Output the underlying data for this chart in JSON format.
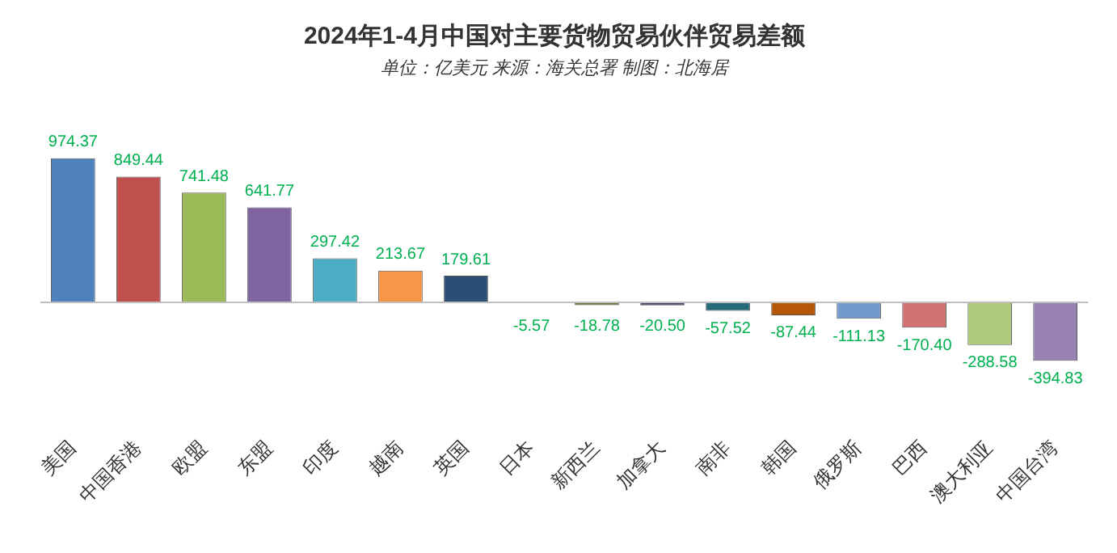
{
  "chart_data": {
    "type": "bar",
    "title": "2024年1-4月中国对主要货物贸易伙伴贸易差额",
    "subtitle": "单位：亿美元 来源：海关总署 制图：北海居",
    "categories": [
      "美国",
      "中国香港",
      "欧盟",
      "东盟",
      "印度",
      "越南",
      "英国",
      "日本",
      "新西兰",
      "加拿大",
      "南非",
      "韩国",
      "俄罗斯",
      "巴西",
      "澳大利亚",
      "中国台湾"
    ],
    "values": [
      974.37,
      849.44,
      741.48,
      641.77,
      297.42,
      213.67,
      179.61,
      -5.57,
      -18.78,
      -20.5,
      -57.52,
      -87.44,
      -111.13,
      -170.4,
      -288.58,
      -394.83
    ],
    "colors": [
      "#4f81bd",
      "#c0504d",
      "#9bbb59",
      "#8064a2",
      "#4bacc6",
      "#f79646",
      "#2c4d75",
      "#772c2a",
      "#5f7530",
      "#4d3b62",
      "#276a7c",
      "#b65708",
      "#729aca",
      "#d07270",
      "#afc97a",
      "#9983b5"
    ],
    "value_labels": [
      "974.37",
      "849.44",
      "741.48",
      "641.77",
      "297.42",
      "213.67",
      "179.61",
      "-5.57",
      "-18.78",
      "-20.50",
      "-57.52",
      "-87.44",
      "-111.13",
      "-170.40",
      "-288.58",
      "-394.83"
    ],
    "grid": false,
    "legend": false
  }
}
